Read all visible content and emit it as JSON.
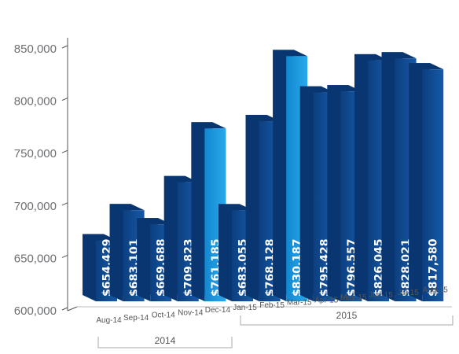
{
  "chart_data": {
    "type": "bar",
    "title": "",
    "xlabel": "",
    "ylabel": "",
    "ylim": [
      600000,
      850000
    ],
    "yticks": [
      "600,000",
      "650,000",
      "700,000",
      "750,000",
      "800,000",
      "850,000"
    ],
    "categories": [
      "Aug-14",
      "Sep-14",
      "Oct-14",
      "Nov-14",
      "Dec-14",
      "Jan-15",
      "Feb-15",
      "Mar-15",
      "Apr-15",
      "May-15",
      "Jun-15",
      "Jul-15",
      "Aug-15"
    ],
    "values": [
      654429,
      683101,
      669688,
      709823,
      761185,
      683055,
      768128,
      830187,
      795428,
      796557,
      826045,
      828021,
      817580
    ],
    "value_labels": [
      "$654,429",
      "$683,101",
      "$669,688",
      "$709,823",
      "$761,185",
      "$683,055",
      "$768,128",
      "$830,187",
      "$795,428",
      "$796,557",
      "$826,045",
      "$828,021",
      "$817,580"
    ],
    "highlighted": [
      "Dec-14",
      "Mar-15"
    ],
    "groups": [
      {
        "label": "2014",
        "categories": [
          "Aug-14",
          "Sep-14",
          "Oct-14",
          "Nov-14",
          "Dec-14"
        ]
      },
      {
        "label": "2015",
        "categories": [
          "Jan-15",
          "Feb-15",
          "Mar-15",
          "Apr-15",
          "May-15",
          "Jun-15",
          "Jul-15",
          "Aug-15"
        ]
      }
    ],
    "colors": {
      "bar_front": "#1659a8",
      "bar_front_dark": "#0c3f7f",
      "bar_back": "#10488f",
      "bar_top": "#093670",
      "highlight_front": "#29a9ec",
      "highlight_front_dark": "#1287cf",
      "axis": "#555555",
      "text": "#6d6f72"
    },
    "grid": false,
    "legend": "none",
    "style": "3d-bar"
  }
}
